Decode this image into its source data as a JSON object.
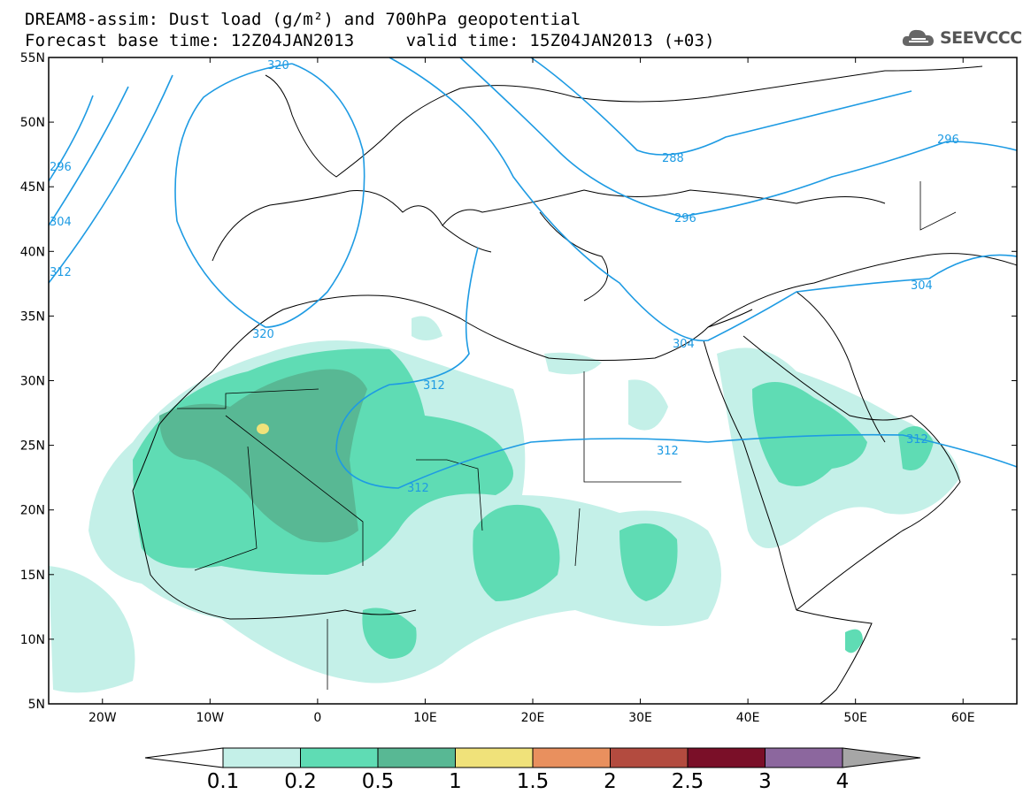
{
  "header": {
    "line1": "DREAM8-assim: Dust load (g/m²) and 700hPa geopotential",
    "line2": "Forecast base time: 12Z04JAN2013     valid time: 15Z04JAN2013 (+03)",
    "logo": "SEEVCCC"
  },
  "map": {
    "lat_labels": [
      "55N",
      "50N",
      "45N",
      "40N",
      "35N",
      "30N",
      "25N",
      "20N",
      "15N",
      "10N",
      "5N"
    ],
    "lon_labels": [
      "20W",
      "10W",
      "0",
      "10E",
      "20E",
      "30E",
      "40E",
      "50E",
      "60E"
    ],
    "lat_range": [
      5,
      55
    ],
    "lon_range": [
      -25,
      65
    ],
    "contour_labels": [
      "320",
      "296",
      "304",
      "312",
      "320",
      "312",
      "312",
      "312",
      "288",
      "296",
      "304",
      "296",
      "304",
      "312"
    ]
  },
  "colorbar": {
    "labels": [
      "0.1",
      "0.2",
      "0.5",
      "1",
      "1.5",
      "2",
      "2.5",
      "3",
      "4"
    ],
    "colors": [
      "#c4f0e8",
      "#5fdcb4",
      "#58b894",
      "#f0e27a",
      "#e9905e",
      "#b34b3f",
      "#7a0f28",
      "#8c679e"
    ],
    "under_color": "#ffffff",
    "over_color": "#a6a6a6"
  }
}
